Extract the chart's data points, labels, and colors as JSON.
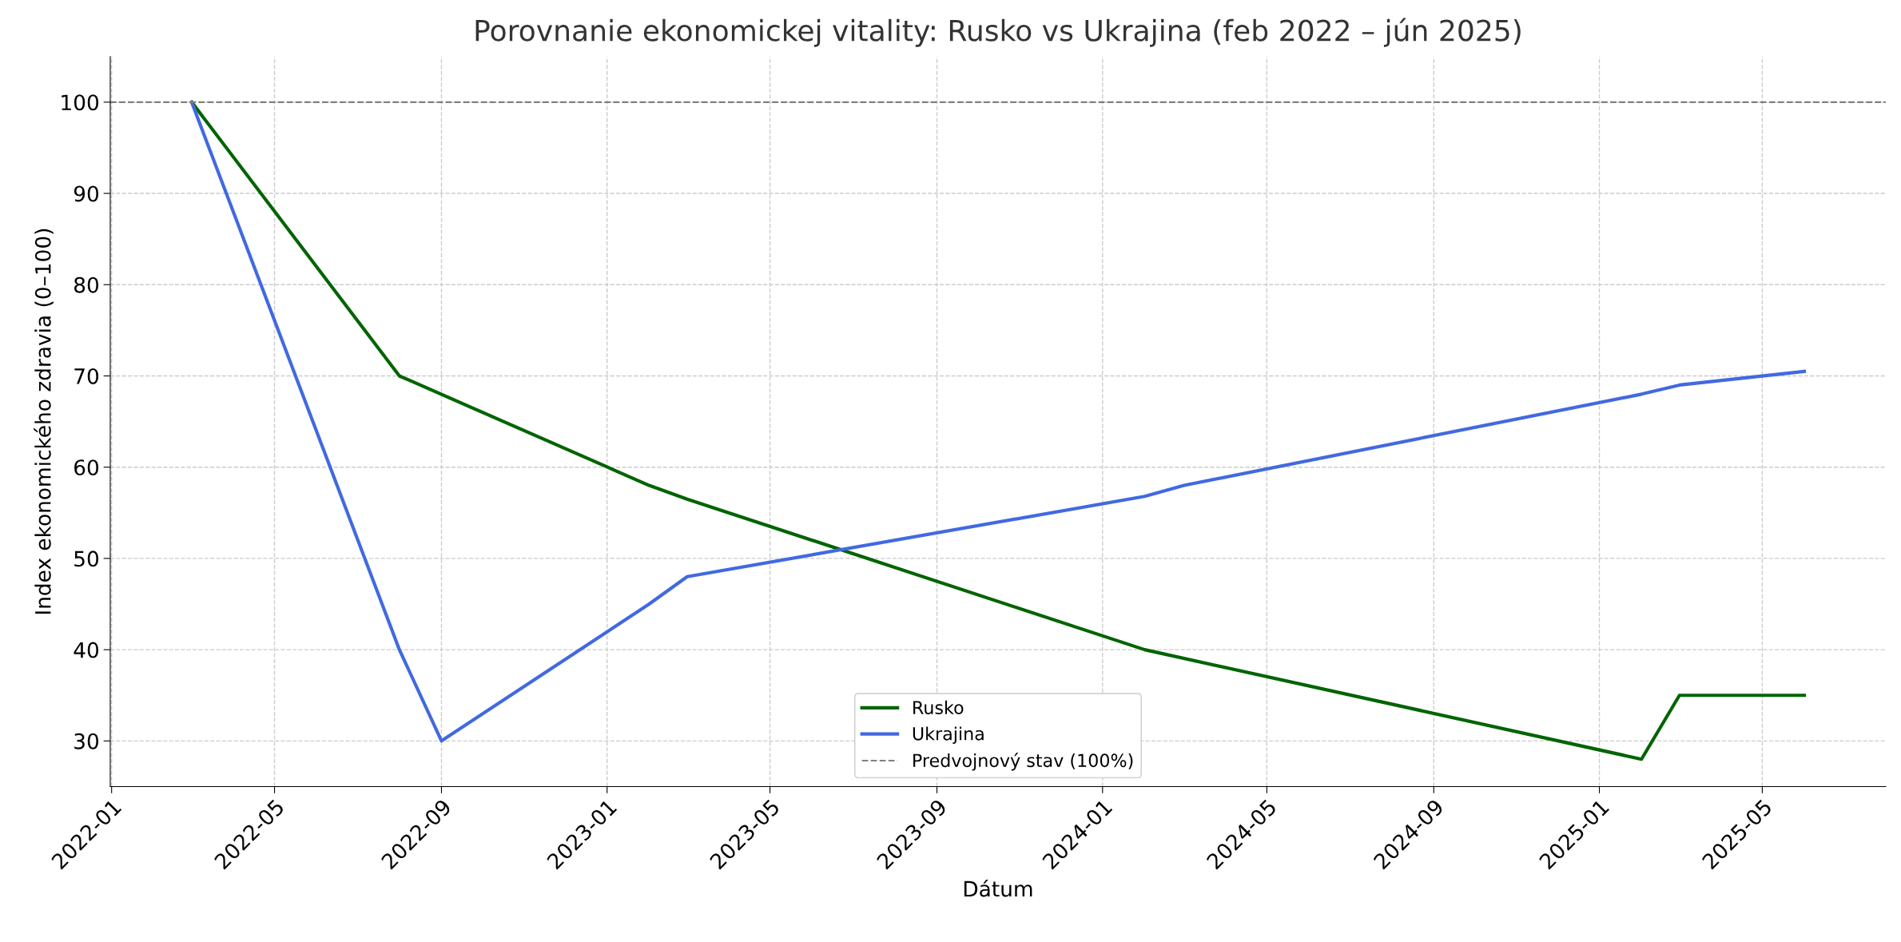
{
  "chart_data": {
    "type": "line",
    "title": "Porovnanie ekonomickej vitality: Rusko vs Ukrajina (feb 2022 – jún 2025)",
    "xlabel": "Dátum",
    "ylabel": "Index ekonomického zdravia (0–100)",
    "series": [
      {
        "name": "Rusko",
        "color": "#006400",
        "x": [
          "2022-03-01",
          "2022-08-01",
          "2023-02-01",
          "2023-03-01",
          "2024-02-01",
          "2025-02-01",
          "2025-03-01",
          "2025-06-01"
        ],
        "values": [
          100,
          70,
          58,
          56.5,
          40,
          28,
          35,
          35
        ]
      },
      {
        "name": "Ukrajina",
        "color": "#4169e1",
        "x": [
          "2022-03-01",
          "2022-08-01",
          "2022-09-01",
          "2023-02-01",
          "2023-03-01",
          "2024-02-01",
          "2024-03-01",
          "2025-02-01",
          "2025-03-01",
          "2025-06-01"
        ],
        "values": [
          100,
          40,
          30,
          45,
          48,
          56.8,
          58,
          68,
          69,
          70.5
        ]
      }
    ],
    "ref_lines": [
      {
        "axis": "y",
        "value": 100,
        "label": "Predvojnový stav (100%)",
        "color": "#808080",
        "line_style": "dashed"
      }
    ],
    "xlim": [
      "2021-12-31",
      "2025-07-31"
    ],
    "xticks": [
      {
        "value": "2022-01-01",
        "label": "2022-01"
      },
      {
        "value": "2022-05-01",
        "label": "2022-05"
      },
      {
        "value": "2022-09-01",
        "label": "2022-09"
      },
      {
        "value": "2023-01-01",
        "label": "2023-01"
      },
      {
        "value": "2023-05-01",
        "label": "2023-05"
      },
      {
        "value": "2023-09-01",
        "label": "2023-09"
      },
      {
        "value": "2024-01-01",
        "label": "2024-01"
      },
      {
        "value": "2024-05-01",
        "label": "2024-05"
      },
      {
        "value": "2024-09-01",
        "label": "2024-09"
      },
      {
        "value": "2025-01-01",
        "label": "2025-01"
      },
      {
        "value": "2025-05-01",
        "label": "2025-05"
      }
    ],
    "ylim": [
      25,
      105
    ],
    "yticks": [
      30,
      40,
      50,
      60,
      70,
      80,
      90,
      100
    ],
    "grid": true,
    "legend": "bottom",
    "line_style": "solid",
    "marker": "none"
  }
}
